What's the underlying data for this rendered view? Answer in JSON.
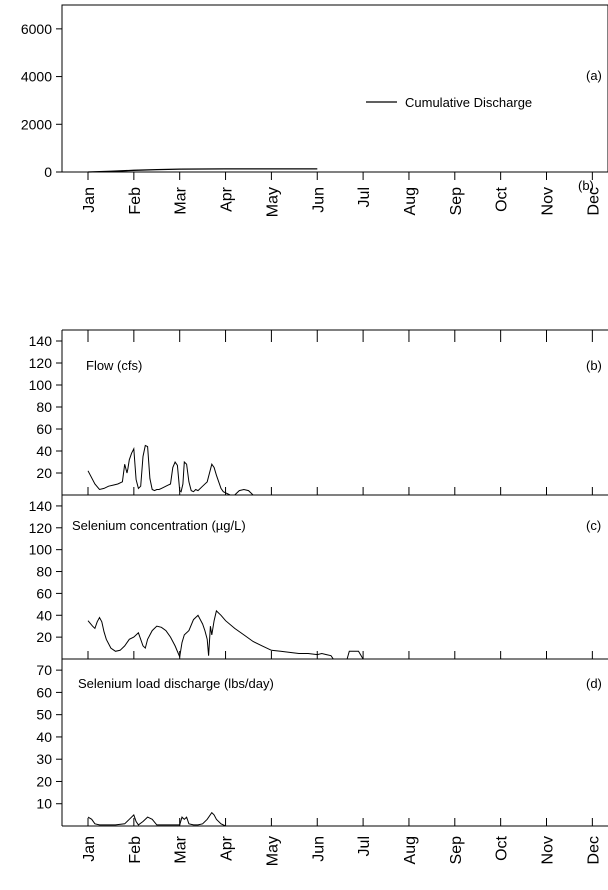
{
  "months": [
    "Jan",
    "Feb",
    "Mar",
    "Apr",
    "May",
    "Jun",
    "Jul",
    "Aug",
    "Sep",
    "Oct",
    "Nov",
    "Dec"
  ],
  "chart_data": [
    {
      "type": "line",
      "panel_label": "(a)",
      "stray_label": "(b)",
      "legend": "Cumulative Discharge",
      "legend_position": "right",
      "x_ticks": [
        "Jan",
        "Feb",
        "Mar",
        "Apr",
        "May",
        "Jun",
        "Jul",
        "Aug",
        "Sep",
        "Oct",
        "Nov",
        "Dec"
      ],
      "xlim": [
        0,
        11.6
      ],
      "ylim": [
        0,
        7000
      ],
      "y_ticks": [
        0,
        2000,
        4000,
        6000
      ],
      "series": [
        {
          "name": "Cumulative Discharge",
          "x": [
            0,
            0.5,
            1,
            1.5,
            2,
            2.5,
            3,
            3.5,
            4,
            4.5,
            5
          ],
          "y": [
            0,
            30,
            70,
            100,
            120,
            125,
            128,
            130,
            130,
            130,
            130
          ]
        }
      ]
    },
    {
      "type": "line",
      "title": "Flow (cfs)",
      "panel_label": "(b)",
      "xlim": [
        0,
        11.6
      ],
      "ylim": [
        0,
        150
      ],
      "y_ticks": [
        20,
        40,
        60,
        80,
        100,
        120,
        140
      ],
      "series": [
        {
          "x": [
            0,
            0.05,
            0.15,
            0.25,
            0.35,
            0.45,
            0.55,
            0.65,
            0.75,
            0.8,
            0.85,
            0.87,
            0.9,
            0.95,
            1.0,
            1.05,
            1.1,
            1.15,
            1.2,
            1.25,
            1.3,
            1.35,
            1.4,
            1.45,
            1.5,
            1.55,
            1.6,
            1.65,
            1.7,
            1.75,
            1.8,
            1.85,
            1.9,
            1.95,
            2.0,
            2.03,
            2.07,
            2.1,
            2.15,
            2.2,
            2.25,
            2.3,
            2.35,
            2.4,
            2.5,
            2.6,
            2.65,
            2.7,
            2.75,
            2.8,
            2.85,
            2.9,
            2.95,
            3.0,
            3.1,
            3.2,
            3.3,
            3.4,
            3.5,
            3.6
          ],
          "y": [
            22,
            18,
            10,
            5,
            6,
            8,
            9,
            10,
            12,
            28,
            20,
            24,
            32,
            38,
            42,
            14,
            6,
            8,
            35,
            45,
            44,
            15,
            5,
            4,
            5,
            5,
            6,
            7,
            8,
            9,
            10,
            25,
            30,
            27,
            4,
            3,
            10,
            30,
            28,
            12,
            4,
            3,
            5,
            4,
            8,
            12,
            20,
            28,
            25,
            18,
            12,
            6,
            3,
            2,
            0,
            0,
            4,
            5,
            4,
            0
          ]
        }
      ]
    },
    {
      "type": "line",
      "title": "Selenium concentration (µg/L)",
      "panel_label": "(c)",
      "xlim": [
        0,
        11.6
      ],
      "ylim": [
        0,
        150
      ],
      "y_ticks": [
        20,
        40,
        60,
        80,
        100,
        120,
        140
      ],
      "series": [
        {
          "x": [
            0,
            0.1,
            0.15,
            0.2,
            0.25,
            0.3,
            0.35,
            0.4,
            0.5,
            0.6,
            0.7,
            0.8,
            0.9,
            1.0,
            1.1,
            1.2,
            1.25,
            1.3,
            1.4,
            1.5,
            1.6,
            1.7,
            1.8,
            1.9,
            2.0,
            2.05,
            2.1,
            2.2,
            2.3,
            2.4,
            2.5,
            2.55,
            2.6,
            2.63,
            2.67,
            2.7,
            2.75,
            2.8,
            2.9,
            3.0,
            3.2,
            3.4,
            3.6,
            3.8,
            4.0,
            4.2,
            4.4,
            4.6,
            4.8,
            5.0,
            5.1,
            5.2,
            5.3,
            5.35,
            5.5,
            5.65,
            5.7,
            5.8,
            5.9,
            6.0
          ],
          "y": [
            35,
            30,
            28,
            34,
            38,
            34,
            25,
            18,
            10,
            7,
            8,
            12,
            18,
            20,
            24,
            12,
            10,
            18,
            26,
            30,
            29,
            26,
            20,
            12,
            2,
            15,
            22,
            26,
            36,
            40,
            32,
            26,
            18,
            3,
            30,
            22,
            35,
            44,
            40,
            35,
            28,
            22,
            16,
            12,
            8,
            7,
            6,
            5,
            5,
            4,
            5,
            4,
            3,
            0,
            0,
            0,
            7,
            7,
            7,
            0
          ]
        }
      ]
    },
    {
      "type": "line",
      "title": "Selenium load discharge (lbs/day)",
      "panel_label": "(d)",
      "xlim": [
        0,
        11.6
      ],
      "ylim": [
        0,
        75
      ],
      "y_ticks": [
        10,
        20,
        30,
        40,
        50,
        60,
        70
      ],
      "series": [
        {
          "x": [
            0,
            0.08,
            0.15,
            0.25,
            0.4,
            0.6,
            0.8,
            0.9,
            1.0,
            1.05,
            1.1,
            1.2,
            1.3,
            1.4,
            1.5,
            1.6,
            1.8,
            2.0,
            2.05,
            2.1,
            2.15,
            2.2,
            2.3,
            2.4,
            2.5,
            2.6,
            2.7,
            2.75,
            2.8,
            2.9,
            3.0,
            3.1
          ],
          "y": [
            4,
            3,
            1,
            0.5,
            0.5,
            0.5,
            1,
            3,
            5,
            2,
            0.5,
            2,
            4,
            3,
            0.5,
            0.5,
            0.5,
            0.5,
            4,
            3,
            4,
            1,
            0.5,
            0.5,
            1,
            3,
            6,
            5,
            3,
            1,
            0,
            0
          ]
        }
      ]
    }
  ]
}
